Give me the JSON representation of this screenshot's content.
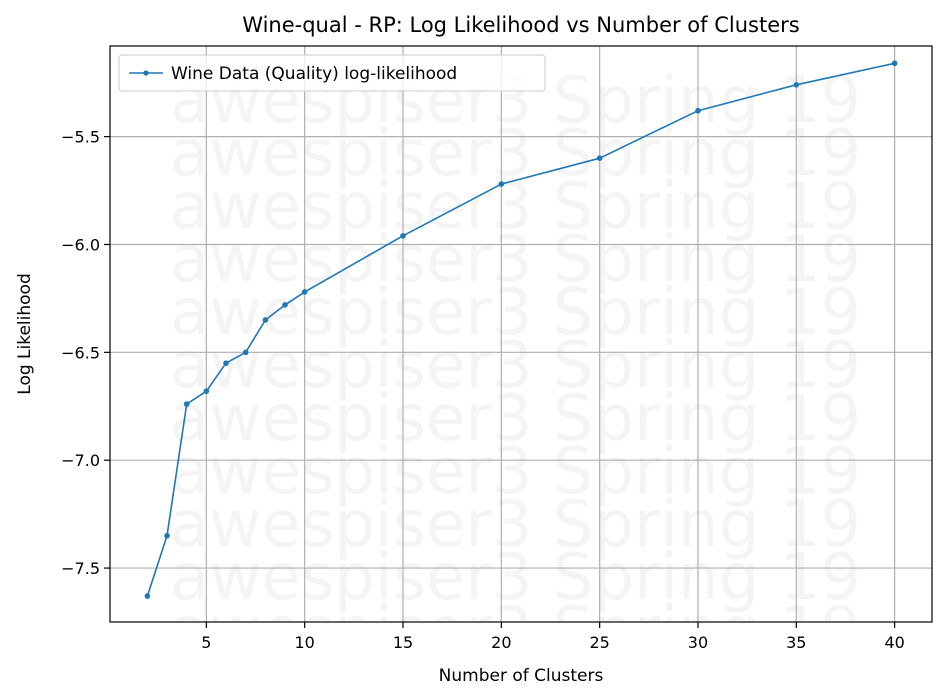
{
  "chart_data": {
    "type": "line",
    "title": "Wine-qual - RP: Log Likelihood vs Number of Clusters",
    "xlabel": "Number of Clusters",
    "ylabel": "Log Likelihood",
    "xlim": [
      0.1,
      41.9
    ],
    "ylim": [
      -7.75,
      -5.08
    ],
    "xticks": [
      5,
      10,
      15,
      20,
      25,
      30,
      35,
      40
    ],
    "yticks": [
      -7.5,
      -7.0,
      -6.5,
      -6.0,
      -5.5
    ],
    "grid": true,
    "legend_position": "top-left",
    "watermark": "awespiser3 Spring 19",
    "series": [
      {
        "name": "Wine Data (Quality) log-likelihood",
        "color": "#1f77b4",
        "x": [
          2,
          3,
          4,
          5,
          6,
          7,
          8,
          9,
          10,
          15,
          20,
          25,
          30,
          35,
          40
        ],
        "y": [
          -7.63,
          -7.35,
          -6.74,
          -6.68,
          -6.55,
          -6.5,
          -6.35,
          -6.28,
          -6.22,
          -5.96,
          -5.72,
          -5.6,
          -5.38,
          -5.26,
          -5.16
        ]
      }
    ]
  }
}
